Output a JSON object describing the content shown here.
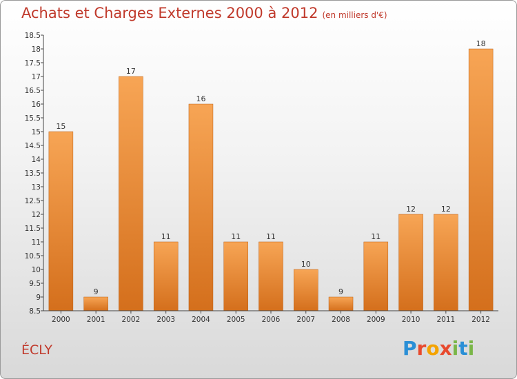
{
  "header": {
    "title": "Achats et Charges Externes 2000 à 2012",
    "unit": "(en milliers d'€)"
  },
  "footer": {
    "city": "ÉCLY",
    "logo_letters": [
      "P",
      "r",
      "o",
      "x",
      "i",
      "t",
      "i"
    ]
  },
  "colors": {
    "title": "#c0392b",
    "bar_top": "#f7a555",
    "bar_bottom": "#d46f1c",
    "logo": [
      "#2a8fd6",
      "#e8492d",
      "#f4a300",
      "#e8492d",
      "#7ab648",
      "#2a8fd6",
      "#7ab648"
    ]
  },
  "chart_data": {
    "type": "bar",
    "title": "Achats et Charges Externes 2000 à 2012",
    "subtitle": "(en milliers d'€)",
    "categories": [
      "2000",
      "2001",
      "2002",
      "2003",
      "2004",
      "2005",
      "2006",
      "2007",
      "2008",
      "2009",
      "2010",
      "2011",
      "2012"
    ],
    "values": [
      15,
      9,
      17,
      11,
      16,
      11,
      11,
      10,
      9,
      11,
      12,
      12,
      18
    ],
    "value_labels": [
      "15",
      "9",
      "17",
      "11",
      "16",
      "11",
      "11",
      "10",
      "9",
      "11",
      "12",
      "12",
      "18"
    ],
    "ylim": [
      8.5,
      18.5
    ],
    "yticks": [
      "8.5",
      "9",
      "9.5",
      "10",
      "10.5",
      "11",
      "11.5",
      "12",
      "12.5",
      "13",
      "13.5",
      "14",
      "14.5",
      "15",
      "15.5",
      "16",
      "16.5",
      "17",
      "17.5",
      "18",
      "18.5"
    ],
    "grid": false,
    "legend": "none"
  }
}
